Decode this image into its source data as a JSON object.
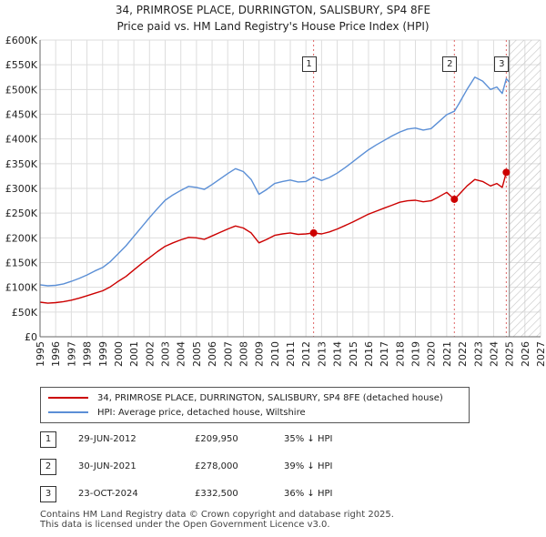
{
  "header": {
    "title_line1": "34, PRIMROSE PLACE, DURRINGTON, SALISBURY, SP4 8FE",
    "title_line2": "Price paid vs. HM Land Registry's House Price Index (HPI)"
  },
  "colors": {
    "property": "#cc0000",
    "hpi": "#5b8fd6",
    "marker_line": "#e06666",
    "hatch": "#bbbbbb"
  },
  "legend": {
    "property_label": "34, PRIMROSE PLACE, DURRINGTON, SALISBURY, SP4 8FE (detached house)",
    "hpi_label": "HPI: Average price, detached house, Wiltshire"
  },
  "sales": [
    {
      "num": "1",
      "date": "29-JUN-2012",
      "price": "£209,950",
      "diff": "35% ↓ HPI"
    },
    {
      "num": "2",
      "date": "30-JUN-2021",
      "price": "£278,000",
      "diff": "39% ↓ HPI"
    },
    {
      "num": "3",
      "date": "23-OCT-2024",
      "price": "£332,500",
      "diff": "36% ↓ HPI"
    }
  ],
  "footer": {
    "line1": "Contains HM Land Registry data © Crown copyright and database right 2025.",
    "line2": "This data is licensed under the Open Government Licence v3.0."
  },
  "chart_data": {
    "type": "line",
    "title": "Price paid vs. HM Land Registry's House Price Index (HPI)",
    "xlim": [
      1995,
      2027
    ],
    "ylim": [
      0,
      600000
    ],
    "y_ticks": [
      0,
      50000,
      100000,
      150000,
      200000,
      250000,
      300000,
      350000,
      400000,
      450000,
      500000,
      550000,
      600000
    ],
    "y_tick_labels": [
      "£0",
      "£50K",
      "£100K",
      "£150K",
      "£200K",
      "£250K",
      "£300K",
      "£350K",
      "£400K",
      "£450K",
      "£500K",
      "£550K",
      "£600K"
    ],
    "x_ticks": [
      1995,
      1996,
      1997,
      1998,
      1999,
      2000,
      2001,
      2002,
      2003,
      2004,
      2005,
      2006,
      2007,
      2008,
      2009,
      2010,
      2011,
      2012,
      2013,
      2014,
      2015,
      2016,
      2017,
      2018,
      2019,
      2020,
      2021,
      2022,
      2023,
      2024,
      2025,
      2026,
      2027
    ],
    "x_tick_labels": [
      "1995",
      "1996",
      "1997",
      "1998",
      "1999",
      "2000",
      "2001",
      "2002",
      "2003",
      "2004",
      "2005",
      "2006",
      "2007",
      "2008",
      "2009",
      "2010",
      "2011",
      "2012",
      "2013",
      "2014",
      "2015",
      "2016",
      "2017",
      "2018",
      "2019",
      "2020",
      "2021",
      "2022",
      "2023",
      "2024",
      "2025",
      "2026",
      "2027"
    ],
    "grid": true,
    "forecast_from": 2025.0,
    "series": [
      {
        "name": "34, PRIMROSE PLACE, DURRINGTON, SALISBURY, SP4 8FE (detached house)",
        "x": [
          1995.0,
          1995.5,
          1996.0,
          1996.5,
          1997.0,
          1997.5,
          1998.0,
          1998.5,
          1999.0,
          1999.5,
          2000.0,
          2000.5,
          2001.0,
          2001.5,
          2002.0,
          2002.5,
          2003.0,
          2003.5,
          2004.0,
          2004.5,
          2005.0,
          2005.5,
          2006.0,
          2006.5,
          2007.0,
          2007.5,
          2008.0,
          2008.5,
          2009.0,
          2009.5,
          2010.0,
          2010.5,
          2011.0,
          2011.5,
          2012.0,
          2012.49,
          2013.0,
          2013.5,
          2014.0,
          2014.5,
          2015.0,
          2015.5,
          2016.0,
          2016.5,
          2017.0,
          2017.5,
          2018.0,
          2018.5,
          2019.0,
          2019.5,
          2020.0,
          2020.5,
          2021.0,
          2021.49,
          2021.8,
          2022.3,
          2022.8,
          2023.3,
          2023.8,
          2024.2,
          2024.55,
          2024.81,
          2025.0
        ],
        "y": [
          70000,
          68000,
          69000,
          71000,
          74000,
          78000,
          83000,
          88000,
          93000,
          101000,
          112000,
          122000,
          135000,
          148000,
          160000,
          172000,
          183000,
          190000,
          196000,
          201000,
          200000,
          197000,
          204000,
          211000,
          218000,
          224000,
          220000,
          210000,
          190000,
          197000,
          205000,
          208000,
          210000,
          207000,
          208000,
          209950,
          208000,
          212000,
          218000,
          225000,
          232000,
          240000,
          248000,
          254000,
          260000,
          266000,
          272000,
          275000,
          276000,
          273000,
          275000,
          283000,
          292000,
          278000,
          288000,
          305000,
          318000,
          314000,
          305000,
          310000,
          302000,
          332500,
          328000
        ]
      },
      {
        "name": "HPI: Average price, detached house, Wiltshire",
        "x": [
          1995.0,
          1995.5,
          1996.0,
          1996.5,
          1997.0,
          1997.5,
          1998.0,
          1998.5,
          1999.0,
          1999.5,
          2000.0,
          2000.5,
          2001.0,
          2001.5,
          2002.0,
          2002.5,
          2003.0,
          2003.5,
          2004.0,
          2004.5,
          2005.0,
          2005.5,
          2006.0,
          2006.5,
          2007.0,
          2007.5,
          2008.0,
          2008.5,
          2009.0,
          2009.5,
          2010.0,
          2010.5,
          2011.0,
          2011.5,
          2012.0,
          2012.49,
          2013.0,
          2013.5,
          2014.0,
          2014.5,
          2015.0,
          2015.5,
          2016.0,
          2016.5,
          2017.0,
          2017.5,
          2018.0,
          2018.5,
          2019.0,
          2019.5,
          2020.0,
          2020.5,
          2021.0,
          2021.49,
          2021.8,
          2022.3,
          2022.8,
          2023.3,
          2023.8,
          2024.2,
          2024.55,
          2024.81,
          2025.0
        ],
        "y": [
          105000,
          103000,
          104000,
          107000,
          112000,
          118000,
          125000,
          133000,
          140000,
          152000,
          168000,
          184000,
          203000,
          222000,
          241000,
          259000,
          276000,
          287000,
          296000,
          304000,
          302000,
          298000,
          308000,
          319000,
          330000,
          340000,
          334000,
          318000,
          288000,
          298000,
          310000,
          314000,
          317000,
          313000,
          314000,
          323000,
          316000,
          322000,
          331000,
          342000,
          354000,
          366000,
          378000,
          388000,
          397000,
          406000,
          414000,
          420000,
          422000,
          418000,
          421000,
          435000,
          449000,
          456000,
          472000,
          500000,
          525000,
          517000,
          500000,
          505000,
          492000,
          522000,
          515000
        ]
      }
    ],
    "annotations": [
      {
        "label": "1",
        "x": 2012.49,
        "y": 209950
      },
      {
        "label": "2",
        "x": 2021.49,
        "y": 278000
      },
      {
        "label": "3",
        "x": 2024.81,
        "y": 332500
      }
    ]
  }
}
